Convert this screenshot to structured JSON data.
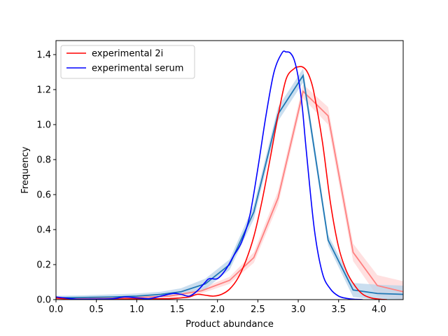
{
  "chart_data": {
    "type": "line",
    "xlabel": "Product abundance",
    "ylabel": "Frequency",
    "xlim": [
      0.0,
      4.3
    ],
    "ylim": [
      0.0,
      1.48
    ],
    "xticks": [
      "0.0",
      "0.5",
      "1.0",
      "1.5",
      "2.0",
      "2.5",
      "3.0",
      "3.5",
      "4.0"
    ],
    "yticks": [
      "0.0",
      "0.2",
      "0.4",
      "0.6",
      "0.8",
      "1.0",
      "1.2",
      "1.4"
    ],
    "grid": false,
    "legend_position": "upper-left",
    "legend": [
      {
        "label": "experimental 2i",
        "color": "#ff0000"
      },
      {
        "label": "experimental serum",
        "color": "#0000ff"
      }
    ],
    "series": [
      {
        "name": "experimental 2i",
        "style": "smooth-kde",
        "color": "#ff0000",
        "x": [
          0.0,
          0.1,
          0.3,
          0.5,
          0.8,
          1.0,
          1.2,
          1.4,
          1.55,
          1.65,
          1.75,
          1.85,
          1.95,
          2.05,
          2.15,
          2.25,
          2.35,
          2.45,
          2.55,
          2.65,
          2.75,
          2.85,
          2.95,
          3.0,
          3.05,
          3.1,
          3.15,
          3.2,
          3.3,
          3.4,
          3.5,
          3.6,
          3.7,
          3.8,
          3.9,
          4.0,
          4.1
        ],
        "y": [
          0.01,
          0.005,
          0.003,
          0.003,
          0.003,
          0.005,
          0.005,
          0.005,
          0.01,
          0.015,
          0.03,
          0.025,
          0.02,
          0.03,
          0.06,
          0.12,
          0.22,
          0.36,
          0.56,
          0.8,
          1.05,
          1.26,
          1.32,
          1.33,
          1.33,
          1.31,
          1.26,
          1.17,
          0.9,
          0.55,
          0.3,
          0.16,
          0.08,
          0.03,
          0.01,
          0.003,
          0.0
        ]
      },
      {
        "name": "experimental serum",
        "style": "smooth-kde",
        "color": "#0000ff",
        "x": [
          0.0,
          0.1,
          0.25,
          0.5,
          0.7,
          0.85,
          1.0,
          1.15,
          1.3,
          1.45,
          1.55,
          1.65,
          1.75,
          1.85,
          1.9,
          2.0,
          2.1,
          2.2,
          2.3,
          2.4,
          2.5,
          2.6,
          2.7,
          2.8,
          2.85,
          2.9,
          2.95,
          3.0,
          3.05,
          3.1,
          3.2,
          3.3,
          3.4,
          3.5,
          3.6,
          3.7,
          3.8
        ],
        "y": [
          0.015,
          0.01,
          0.003,
          0.003,
          0.005,
          0.015,
          0.01,
          0.005,
          0.02,
          0.035,
          0.03,
          0.02,
          0.05,
          0.1,
          0.12,
          0.12,
          0.17,
          0.25,
          0.33,
          0.48,
          0.75,
          1.05,
          1.3,
          1.41,
          1.415,
          1.41,
          1.37,
          1.27,
          1.1,
          0.85,
          0.4,
          0.15,
          0.06,
          0.02,
          0.007,
          0.002,
          0.0
        ]
      },
      {
        "name": "",
        "style": "band",
        "color": "#ff8080",
        "band_color": "#ffd5d5",
        "x": [
          0.0,
          0.3,
          0.7,
          1.0,
          1.4,
          1.8,
          2.15,
          2.45,
          2.75,
          3.06,
          3.37,
          3.68,
          3.98,
          4.3
        ],
        "y": [
          0.005,
          0.005,
          0.008,
          0.012,
          0.02,
          0.05,
          0.11,
          0.24,
          0.58,
          1.19,
          1.05,
          0.27,
          0.08,
          0.045
        ],
        "err": [
          0.01,
          0.01,
          0.01,
          0.012,
          0.015,
          0.015,
          0.02,
          0.03,
          0.04,
          0.04,
          0.05,
          0.05,
          0.06,
          0.06
        ]
      },
      {
        "name": "",
        "style": "band",
        "color": "#1f77b4",
        "band_color": "#b8d3ea",
        "x": [
          0.0,
          0.3,
          0.7,
          1.0,
          1.3,
          1.55,
          1.85,
          2.15,
          2.45,
          2.75,
          3.06,
          3.37,
          3.68,
          3.98,
          4.3
        ],
        "y": [
          0.01,
          0.012,
          0.015,
          0.02,
          0.03,
          0.045,
          0.09,
          0.2,
          0.5,
          1.06,
          1.28,
          0.34,
          0.055,
          0.035,
          0.03
        ],
        "err": [
          0.012,
          0.012,
          0.015,
          0.015,
          0.015,
          0.02,
          0.03,
          0.03,
          0.04,
          0.04,
          0.04,
          0.03,
          0.04,
          0.05,
          0.05
        ]
      }
    ]
  }
}
